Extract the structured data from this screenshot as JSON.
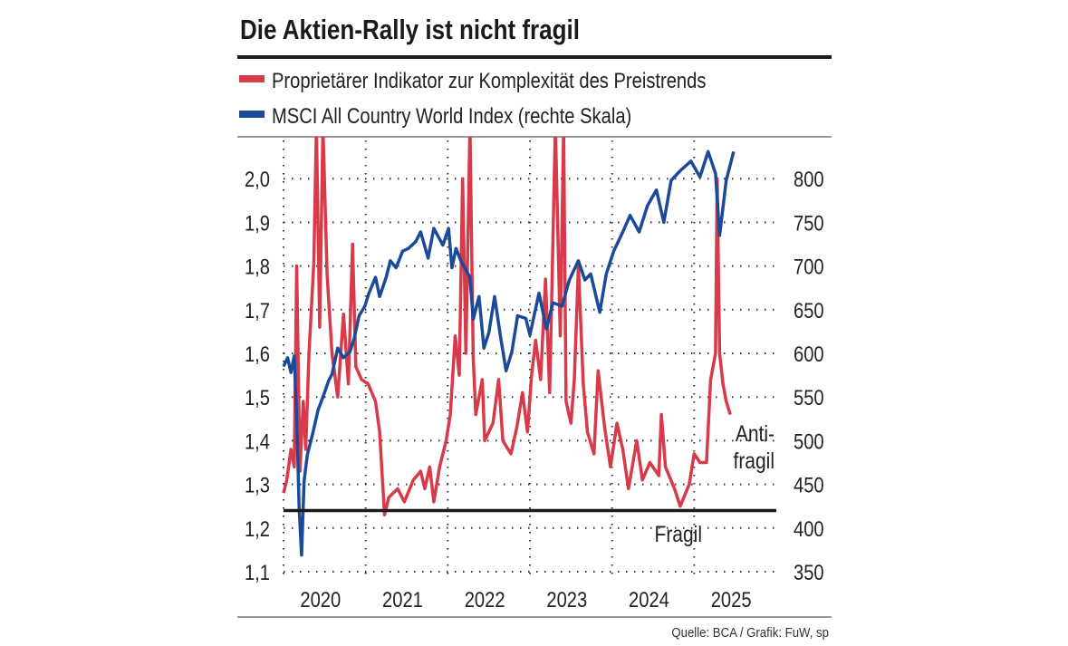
{
  "chart_data": {
    "type": "line",
    "title": "Die Aktien-Rally ist nicht fragil",
    "source": "Quelle: BCA / Grafik: FuW, sp",
    "xlim": [
      2020,
      2026
    ],
    "x_ticks": [
      "2020",
      "2021",
      "2022",
      "2023",
      "2024",
      "2025"
    ],
    "y_left": {
      "lim": [
        1.1,
        2.1
      ],
      "ticks": [
        "1,1",
        "1,2",
        "1,3",
        "1,4",
        "1,5",
        "1,6",
        "1,7",
        "1,8",
        "1,9",
        "2,0"
      ],
      "tick_values": [
        1.1,
        1.2,
        1.3,
        1.4,
        1.5,
        1.6,
        1.7,
        1.8,
        1.9,
        2.0
      ]
    },
    "y_right": {
      "lim": [
        350,
        850
      ],
      "ticks": [
        "350",
        "400",
        "450",
        "500",
        "550",
        "600",
        "650",
        "700",
        "750",
        "800"
      ],
      "tick_values": [
        350,
        400,
        450,
        500,
        550,
        600,
        650,
        700,
        750,
        800
      ]
    },
    "grid": true,
    "legend_placement": "top-left",
    "threshold": {
      "value": 1.24,
      "color": "#1a1a1a"
    },
    "annotations": {
      "upper": "Anti-\nfragil",
      "upper_line1": "Anti-",
      "upper_line2": "fragil",
      "lower": "Fragil"
    },
    "series": [
      {
        "name": "Proprietärer Indikator zur Komplexität des Preistrends",
        "axis": "left",
        "color": "#d83a4a",
        "x": [
          2020.0,
          2020.04,
          2020.09,
          2020.13,
          2020.16,
          2020.2,
          2020.24,
          2020.27,
          2020.31,
          2020.37,
          2020.4,
          2020.44,
          2020.48,
          2020.53,
          2020.59,
          2020.66,
          2020.73,
          2020.79,
          2020.84,
          2020.88,
          2020.95,
          2021.03,
          2021.12,
          2021.17,
          2021.23,
          2021.28,
          2021.39,
          2021.47,
          2021.58,
          2021.67,
          2021.72,
          2021.78,
          2021.83,
          2021.9,
          2021.98,
          2022.03,
          2022.09,
          2022.14,
          2022.18,
          2022.22,
          2022.27,
          2022.31,
          2022.34,
          2022.42,
          2022.45,
          2022.55,
          2022.62,
          2022.67,
          2022.77,
          2022.84,
          2022.91,
          2022.97,
          2023.02,
          2023.07,
          2023.13,
          2023.19,
          2023.24,
          2023.31,
          2023.37,
          2023.41,
          2023.44,
          2023.5,
          2023.54,
          2023.59,
          2023.65,
          2023.7,
          2023.78,
          2023.83,
          2023.91,
          2023.98,
          2024.06,
          2024.13,
          2024.2,
          2024.3,
          2024.37,
          2024.46,
          2024.57,
          2024.6,
          2024.65,
          2024.76,
          2024.83,
          2024.94,
          2025.0,
          2025.07,
          2025.15,
          2025.2,
          2025.26,
          2025.28,
          2025.31,
          2025.35,
          2025.39,
          2025.44
        ],
        "values": [
          1.28,
          1.31,
          1.38,
          1.34,
          1.8,
          1.33,
          1.49,
          1.38,
          1.6,
          1.81,
          2.12,
          1.66,
          2.12,
          1.78,
          1.6,
          1.5,
          1.69,
          1.53,
          1.85,
          1.57,
          1.54,
          1.53,
          1.49,
          1.42,
          1.23,
          1.27,
          1.29,
          1.26,
          1.31,
          1.33,
          1.29,
          1.34,
          1.26,
          1.34,
          1.4,
          1.46,
          1.64,
          1.55,
          2.0,
          1.6,
          2.12,
          1.59,
          1.46,
          1.54,
          1.4,
          1.44,
          1.54,
          1.4,
          1.37,
          1.43,
          1.51,
          1.42,
          1.55,
          1.63,
          1.54,
          1.77,
          1.51,
          2.12,
          1.64,
          2.12,
          1.49,
          1.44,
          1.54,
          1.8,
          1.53,
          1.42,
          1.37,
          1.56,
          1.43,
          1.34,
          1.44,
          1.38,
          1.29,
          1.4,
          1.31,
          1.35,
          1.32,
          1.46,
          1.34,
          1.29,
          1.25,
          1.3,
          1.37,
          1.35,
          1.35,
          1.54,
          1.6,
          2.0,
          1.6,
          1.53,
          1.49,
          1.46
        ]
      },
      {
        "name": "MSCI All Country World Index (rechte Skala)",
        "axis": "right",
        "color": "#1b4a9b",
        "x": [
          2020.0,
          2020.05,
          2020.09,
          2020.13,
          2020.16,
          2020.19,
          2020.22,
          2020.25,
          2020.29,
          2020.35,
          2020.42,
          2020.48,
          2020.55,
          2020.59,
          2020.66,
          2020.73,
          2020.81,
          2020.86,
          2020.92,
          2020.99,
          2021.04,
          2021.12,
          2021.17,
          2021.25,
          2021.3,
          2021.37,
          2021.45,
          2021.52,
          2021.61,
          2021.67,
          2021.76,
          2021.83,
          2021.94,
          2022.01,
          2022.05,
          2022.1,
          2022.16,
          2022.27,
          2022.31,
          2022.38,
          2022.44,
          2022.5,
          2022.57,
          2022.64,
          2022.71,
          2022.78,
          2022.85,
          2022.95,
          2023.0,
          2023.11,
          2023.2,
          2023.28,
          2023.39,
          2023.48,
          2023.59,
          2023.67,
          2023.74,
          2023.85,
          2023.93,
          2024.02,
          2024.13,
          2024.22,
          2024.33,
          2024.43,
          2024.54,
          2024.63,
          2024.72,
          2024.83,
          2024.96,
          2025.07,
          2025.17,
          2025.26,
          2025.31,
          2025.39,
          2025.48
        ],
        "values": [
          585,
          595,
          578,
          597,
          528,
          424,
          369,
          454,
          484,
          506,
          535,
          550,
          569,
          576,
          606,
          595,
          602,
          617,
          643,
          654,
          669,
          687,
          665,
          687,
          706,
          698,
          717,
          720,
          728,
          739,
          709,
          743,
          724,
          743,
          698,
          720,
          706,
          687,
          639,
          665,
          606,
          624,
          665,
          620,
          580,
          602,
          643,
          640,
          621,
          669,
          628,
          658,
          654,
          684,
          706,
          684,
          691,
          647,
          691,
          717,
          739,
          758,
          739,
          769,
          787,
          750,
          798,
          809,
          820,
          802,
          831,
          806,
          735,
          798,
          831
        ]
      }
    ]
  }
}
